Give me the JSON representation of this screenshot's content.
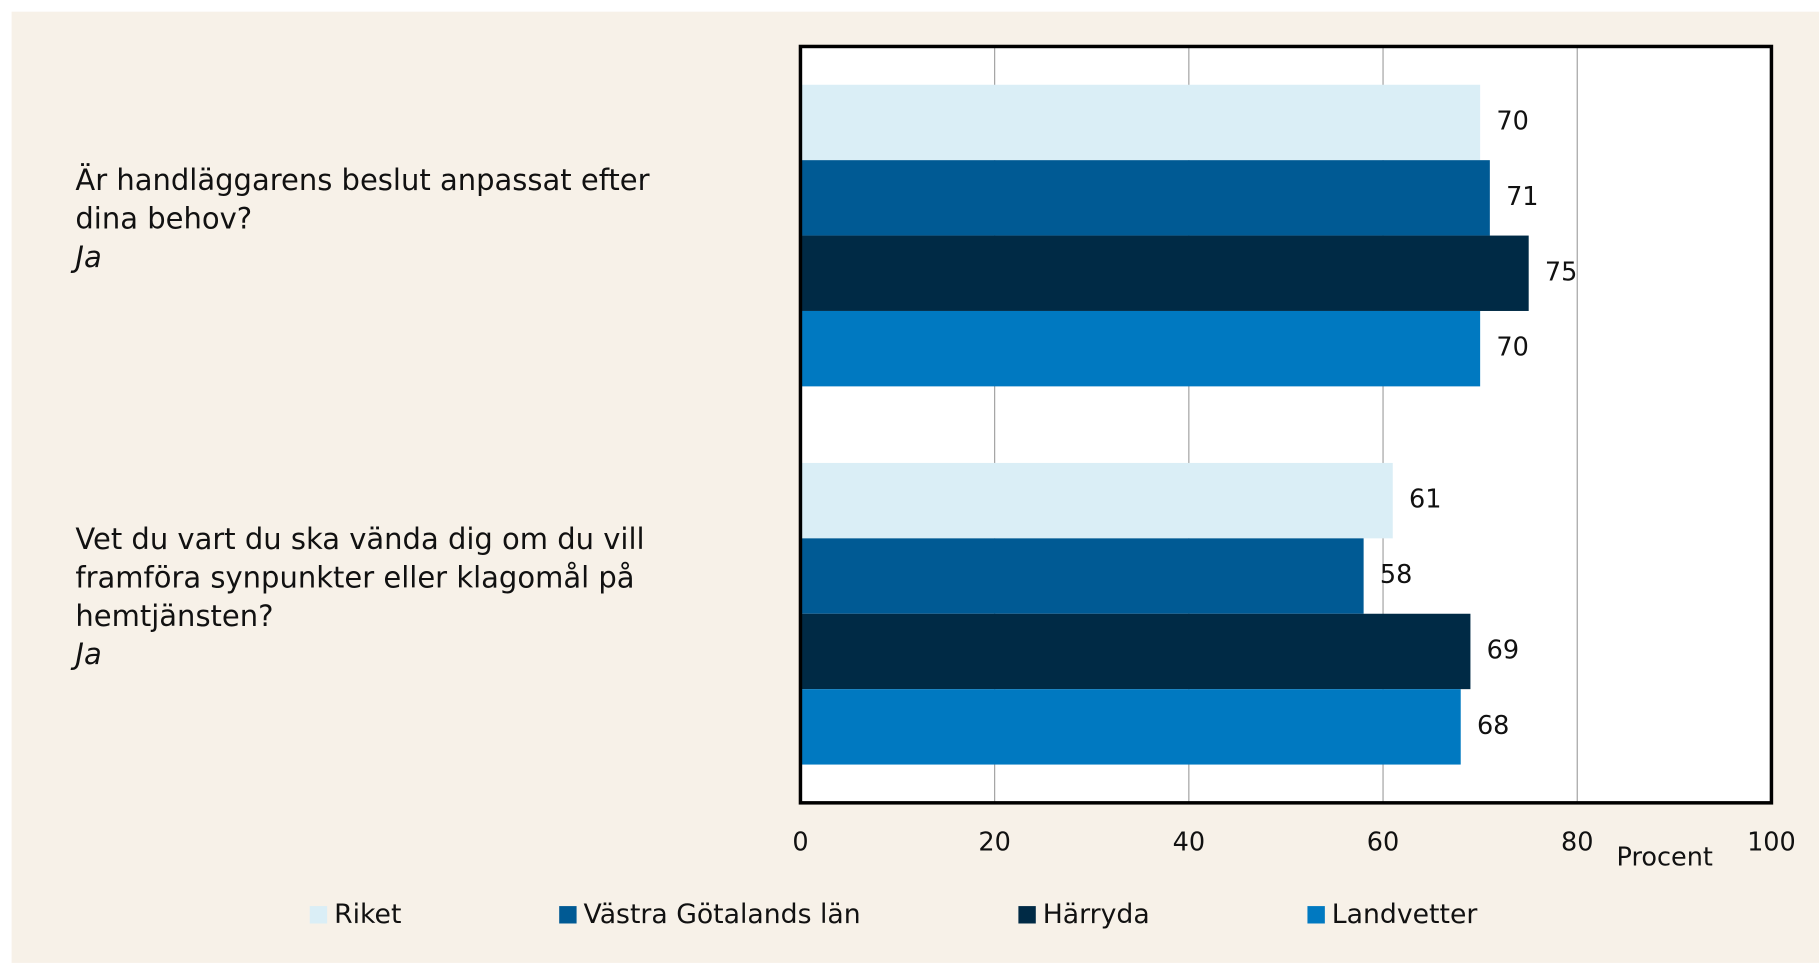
{
  "chart_data": {
    "type": "hbar",
    "categories": [
      [
        "Är handläggarens beslut anpassat efter",
        "dina behov?"
      ],
      [
        "Vet du vart du ska vända dig om du vill",
        "framföra synpunkter eller klagomål på",
        "hemtjänsten?"
      ]
    ],
    "category_answers": [
      "Ja",
      "Ja"
    ],
    "series": [
      {
        "name": "Riket",
        "color": "#daeef6",
        "values": [
          70,
          61
        ]
      },
      {
        "name": "Västra Götalands län",
        "color": "#005a94",
        "values": [
          71,
          58
        ]
      },
      {
        "name": "Härryda",
        "color": "#002a45",
        "values": [
          75,
          69
        ]
      },
      {
        "name": "Landvetter",
        "color": "#0079c1",
        "values": [
          70,
          68
        ]
      }
    ],
    "xlim": [
      0,
      100
    ],
    "xticks": [
      0,
      20,
      40,
      60,
      80,
      100
    ],
    "xlabel": "Procent",
    "grid": true,
    "legend": "bottom"
  }
}
